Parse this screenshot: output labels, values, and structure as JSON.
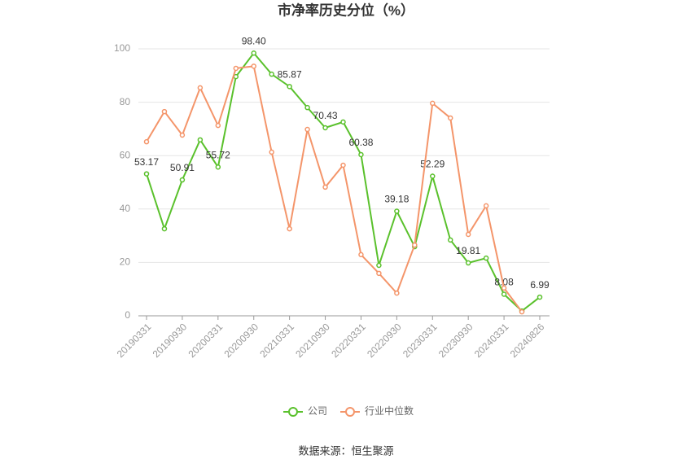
{
  "chart_data": {
    "type": "line",
    "title": "市净率历史分位（%）",
    "categories": [
      "20190331",
      null,
      "20190930",
      null,
      "20200331",
      null,
      "20200930",
      null,
      "20210331",
      null,
      "20210930",
      null,
      "20220331",
      null,
      "20220930",
      null,
      "20230331",
      null,
      "20230930",
      null,
      "20240331",
      null,
      "20240826"
    ],
    "series": [
      {
        "name": "公司",
        "color": "#5ac12c",
        "values": [
          53.17,
          32.6,
          50.91,
          65.9,
          55.72,
          89.6,
          98.4,
          90.5,
          85.87,
          78,
          70.43,
          72.6,
          60.38,
          18.9,
          39.18,
          25.9,
          52.29,
          28.4,
          19.81,
          21.6,
          8.08,
          1.8,
          6.99
        ],
        "value_labels": [
          "53.17",
          null,
          "50.91",
          null,
          "55.72",
          null,
          "98.40",
          null,
          "85.87",
          null,
          "70.43",
          null,
          "60.38",
          null,
          "39.18",
          null,
          "52.29",
          null,
          "19.81",
          null,
          "8.08",
          null,
          "6.99"
        ]
      },
      {
        "name": "行业中位数",
        "color": "#f4956a",
        "values": [
          65.2,
          76.5,
          67.7,
          85.4,
          71.3,
          92.7,
          93.5,
          61.3,
          32.6,
          69.8,
          48.2,
          56.4,
          22.9,
          15.9,
          8.5,
          26.5,
          79.6,
          74.1,
          30.5,
          41.2,
          10.4,
          1.5,
          null
        ]
      }
    ],
    "ylim": [
      0,
      100
    ],
    "yticks": [
      0,
      20,
      40,
      60,
      80,
      100
    ],
    "grid": true,
    "legend": "bottom",
    "source": "数据来源：恒生聚源"
  }
}
